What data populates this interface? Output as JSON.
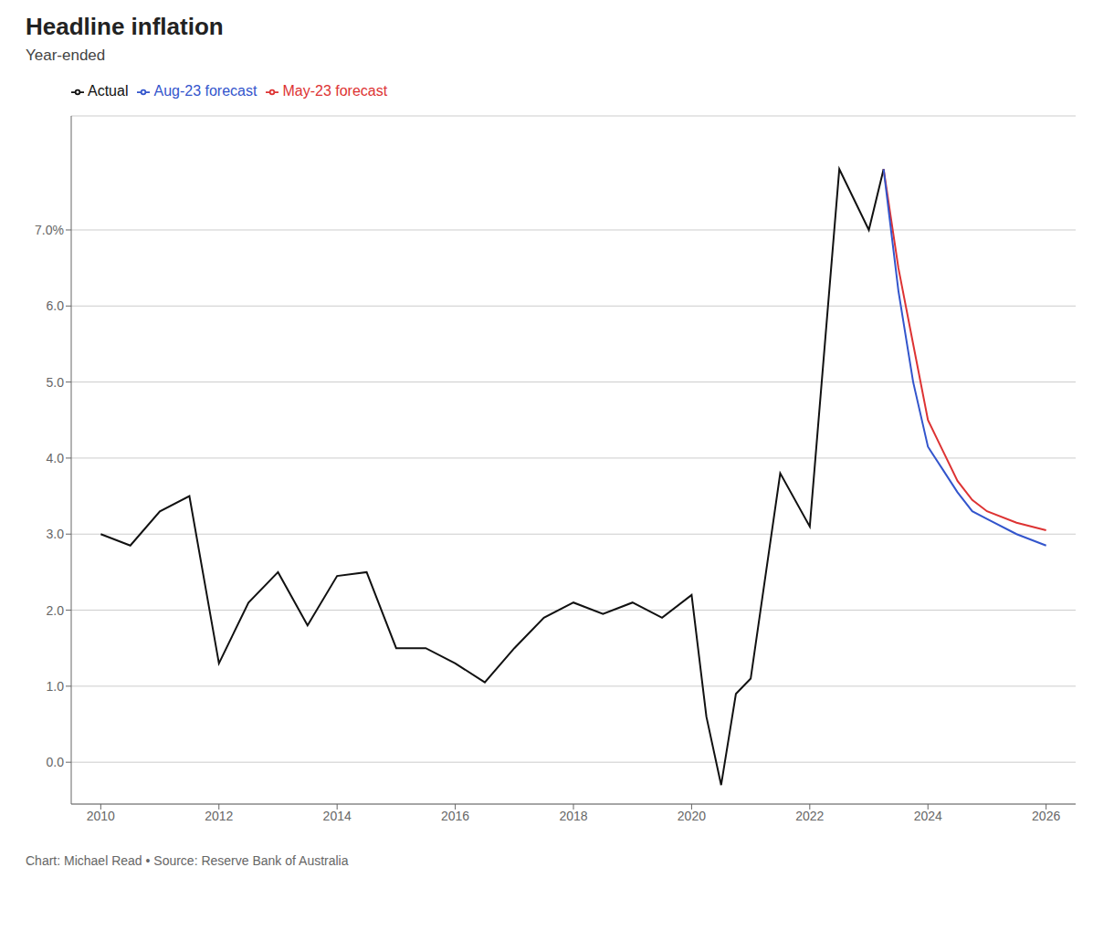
{
  "chart_data": {
    "type": "line",
    "title": "Headline inflation",
    "subtitle": "Year-ended",
    "annotations": [
      "Chart: Michael Read • Source: Reserve Bank of Australia"
    ],
    "x": [
      2010.0,
      2010.5,
      2011.0,
      2011.5,
      2012.0,
      2012.5,
      2013.0,
      2013.5,
      2014.0,
      2014.5,
      2015.0,
      2015.5,
      2016.0,
      2016.5,
      2017.0,
      2017.5,
      2018.0,
      2018.5,
      2019.0,
      2019.5,
      2020.0,
      2020.25,
      2020.5,
      2020.75,
      2021.0,
      2021.5,
      2022.0,
      2022.5,
      2023.0,
      2023.25,
      2023.5,
      2023.75,
      2024.0,
      2024.25,
      2024.5,
      2024.75,
      2025.0,
      2025.5,
      2026.0
    ],
    "series": [
      {
        "name": "Actual",
        "color": "#111111",
        "values": [
          3.0,
          2.85,
          3.3,
          3.5,
          1.3,
          2.1,
          2.5,
          1.8,
          2.45,
          2.5,
          1.5,
          1.5,
          1.3,
          1.05,
          1.5,
          1.9,
          2.1,
          1.95,
          2.1,
          1.9,
          2.2,
          0.6,
          -0.3,
          0.9,
          1.1,
          3.8,
          3.1,
          7.8,
          7.0,
          7.8,
          null,
          null,
          null,
          null,
          null,
          null,
          null,
          null,
          null
        ]
      },
      {
        "name": "May-23 forecast",
        "color": "#dd3333",
        "values": [
          null,
          null,
          null,
          null,
          null,
          null,
          null,
          null,
          null,
          null,
          null,
          null,
          null,
          null,
          null,
          null,
          null,
          null,
          null,
          null,
          null,
          null,
          null,
          null,
          null,
          null,
          null,
          null,
          null,
          7.8,
          6.5,
          5.5,
          4.5,
          4.1,
          3.7,
          3.45,
          3.3,
          3.15,
          3.05
        ]
      },
      {
        "name": "Aug-23 forecast",
        "color": "#3355cc",
        "values": [
          null,
          null,
          null,
          null,
          null,
          null,
          null,
          null,
          null,
          null,
          null,
          null,
          null,
          null,
          null,
          null,
          null,
          null,
          null,
          null,
          null,
          null,
          null,
          null,
          null,
          null,
          null,
          null,
          null,
          7.8,
          6.2,
          5.0,
          4.15,
          3.85,
          3.55,
          3.3,
          3.2,
          3.0,
          2.85
        ]
      }
    ],
    "xlim": [
      2009.5,
      2026.5
    ],
    "ylim": [
      -0.55,
      8.5
    ],
    "xticks": [
      2010,
      2012,
      2014,
      2016,
      2018,
      2020,
      2022,
      2024,
      2026
    ],
    "yticks": [
      {
        "value": 0.0,
        "label": "0.0"
      },
      {
        "value": 1.0,
        "label": "1.0"
      },
      {
        "value": 2.0,
        "label": "2.0"
      },
      {
        "value": 3.0,
        "label": "3.0"
      },
      {
        "value": 4.0,
        "label": "4.0"
      },
      {
        "value": 5.0,
        "label": "5.0"
      },
      {
        "value": 6.0,
        "label": "6.0"
      },
      {
        "value": 7.0,
        "label": "7.0%"
      }
    ],
    "grid": true
  }
}
